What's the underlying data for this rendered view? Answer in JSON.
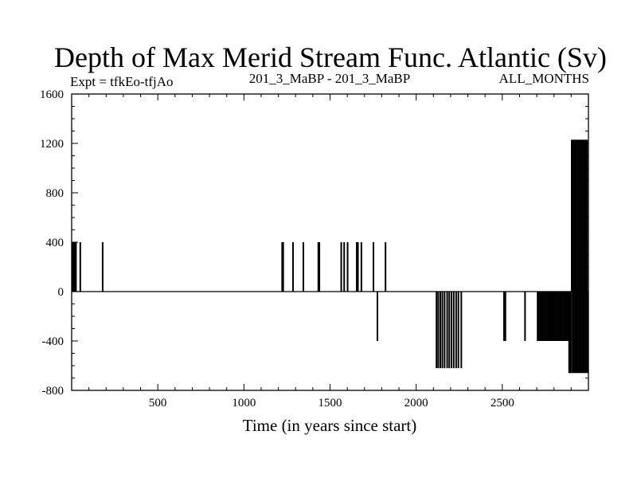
{
  "chart_data": {
    "type": "line",
    "title": "Depth of Max Merid Stream Func. Atlantic (Sv)",
    "subtitle_left": "Expt = tfkEo-tfjAo",
    "subtitle_center": "201_3_MaBP - 201_3_MaBP",
    "subtitle_right": "ALL_MONTHS",
    "xlabel": "Time (in years since start)",
    "ylabel": "",
    "xlim": [
      0,
      3000
    ],
    "ylim": [
      -800,
      1600
    ],
    "xticks": [
      500,
      1000,
      1500,
      2000,
      2500
    ],
    "yticks": [
      -800,
      -400,
      0,
      400,
      800,
      1200,
      1600
    ],
    "grid": false,
    "baseline": 0,
    "series": [
      {
        "spikes": [
          {
            "x": 5,
            "y": 400
          },
          {
            "x": 10,
            "y": 400
          },
          {
            "x": 15,
            "y": 400
          },
          {
            "x": 20,
            "y": 400
          },
          {
            "x": 25,
            "y": 400
          },
          {
            "x": 50,
            "y": 400
          },
          {
            "x": 180,
            "y": 400
          },
          {
            "x": 1222,
            "y": 400
          },
          {
            "x": 1228,
            "y": 400
          },
          {
            "x": 1285,
            "y": 400
          },
          {
            "x": 1345,
            "y": 400
          },
          {
            "x": 1432,
            "y": 400
          },
          {
            "x": 1438,
            "y": 400
          },
          {
            "x": 1565,
            "y": 400
          },
          {
            "x": 1582,
            "y": 400
          },
          {
            "x": 1602,
            "y": 400
          },
          {
            "x": 1655,
            "y": 400
          },
          {
            "x": 1662,
            "y": 400
          },
          {
            "x": 1682,
            "y": 400
          },
          {
            "x": 1752,
            "y": 400
          },
          {
            "x": 1775,
            "y": -400
          },
          {
            "x": 1822,
            "y": 400
          },
          {
            "x": 2118,
            "y": -620
          },
          {
            "x": 2128,
            "y": -620
          },
          {
            "x": 2140,
            "y": -620
          },
          {
            "x": 2152,
            "y": -620
          },
          {
            "x": 2165,
            "y": -620
          },
          {
            "x": 2180,
            "y": -620
          },
          {
            "x": 2192,
            "y": -620
          },
          {
            "x": 2205,
            "y": -620
          },
          {
            "x": 2218,
            "y": -620
          },
          {
            "x": 2232,
            "y": -620
          },
          {
            "x": 2245,
            "y": -620
          },
          {
            "x": 2262,
            "y": -620
          },
          {
            "x": 2510,
            "y": -400
          },
          {
            "x": 2518,
            "y": -400
          },
          {
            "x": 2632,
            "y": -400
          },
          {
            "x": 2705,
            "y": -400
          },
          {
            "x": 2712,
            "y": -400
          },
          {
            "x": 2720,
            "y": -400
          },
          {
            "x": 2728,
            "y": -400
          },
          {
            "x": 2736,
            "y": -400
          },
          {
            "x": 2744,
            "y": -400
          },
          {
            "x": 2752,
            "y": -400
          },
          {
            "x": 2760,
            "y": -400
          },
          {
            "x": 2768,
            "y": -400
          },
          {
            "x": 2776,
            "y": -400
          },
          {
            "x": 2784,
            "y": -400
          },
          {
            "x": 2792,
            "y": -400
          },
          {
            "x": 2800,
            "y": -400
          },
          {
            "x": 2808,
            "y": -400
          },
          {
            "x": 2816,
            "y": -400
          },
          {
            "x": 2824,
            "y": -400
          },
          {
            "x": 2832,
            "y": -400
          },
          {
            "x": 2840,
            "y": -400
          },
          {
            "x": 2848,
            "y": -400
          },
          {
            "x": 2856,
            "y": -400
          },
          {
            "x": 2864,
            "y": -400
          },
          {
            "x": 2872,
            "y": -400
          },
          {
            "x": 2880,
            "y": -400
          },
          {
            "x": 2888,
            "y": -660
          },
          {
            "x": 2893,
            "y": -660
          },
          {
            "x": 2898,
            "y": -660
          },
          {
            "x": 2903,
            "y": 1230
          },
          {
            "x": 2908,
            "y": -660
          },
          {
            "x": 2912,
            "y": 1230
          },
          {
            "x": 2916,
            "y": -660
          },
          {
            "x": 2920,
            "y": 1230
          },
          {
            "x": 2924,
            "y": -660
          },
          {
            "x": 2928,
            "y": 1230
          },
          {
            "x": 2932,
            "y": -660
          },
          {
            "x": 2936,
            "y": 1230
          },
          {
            "x": 2940,
            "y": -660
          },
          {
            "x": 2944,
            "y": 1230
          },
          {
            "x": 2948,
            "y": -660
          },
          {
            "x": 2952,
            "y": 1230
          },
          {
            "x": 2956,
            "y": -660
          },
          {
            "x": 2960,
            "y": 1230
          },
          {
            "x": 2964,
            "y": -660
          },
          {
            "x": 2968,
            "y": 1230
          },
          {
            "x": 2972,
            "y": -660
          },
          {
            "x": 2976,
            "y": 1230
          },
          {
            "x": 2980,
            "y": -660
          },
          {
            "x": 2984,
            "y": 1230
          },
          {
            "x": 2988,
            "y": -660
          },
          {
            "x": 2992,
            "y": 1230
          },
          {
            "x": 2996,
            "y": -660
          }
        ]
      }
    ]
  }
}
